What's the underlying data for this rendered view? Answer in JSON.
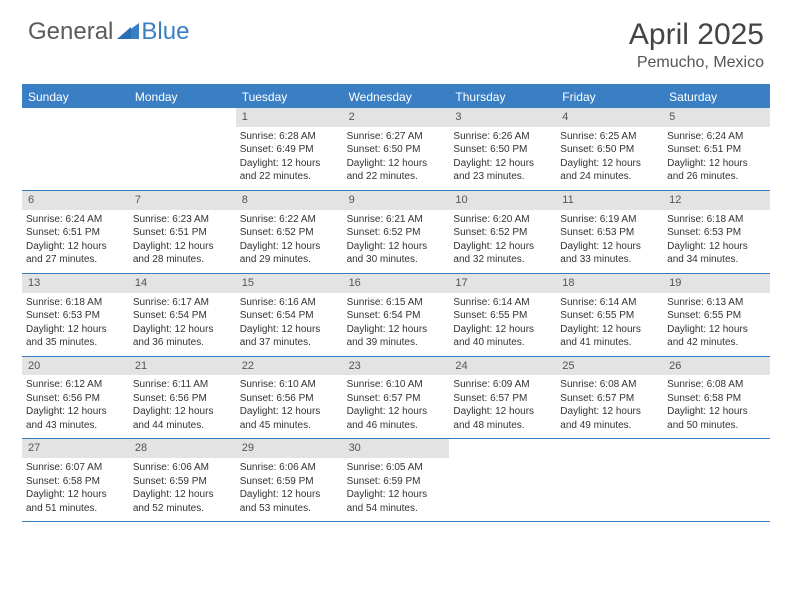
{
  "logo": {
    "text1": "General",
    "text2": "Blue"
  },
  "title": "April 2025",
  "location": "Pemucho, Mexico",
  "colors": {
    "accent": "#3a7fc4",
    "dayHeaderBg": "#e3e3e3",
    "text": "#333333",
    "logoGray": "#5a5a5a"
  },
  "weekdays": [
    "Sunday",
    "Monday",
    "Tuesday",
    "Wednesday",
    "Thursday",
    "Friday",
    "Saturday"
  ],
  "weeks": [
    [
      {
        "n": "",
        "empty": true
      },
      {
        "n": "",
        "empty": true
      },
      {
        "n": "1",
        "sr": "6:28 AM",
        "ss": "6:49 PM",
        "dl": "12 hours and 22 minutes."
      },
      {
        "n": "2",
        "sr": "6:27 AM",
        "ss": "6:50 PM",
        "dl": "12 hours and 22 minutes."
      },
      {
        "n": "3",
        "sr": "6:26 AM",
        "ss": "6:50 PM",
        "dl": "12 hours and 23 minutes."
      },
      {
        "n": "4",
        "sr": "6:25 AM",
        "ss": "6:50 PM",
        "dl": "12 hours and 24 minutes."
      },
      {
        "n": "5",
        "sr": "6:24 AM",
        "ss": "6:51 PM",
        "dl": "12 hours and 26 minutes."
      }
    ],
    [
      {
        "n": "6",
        "sr": "6:24 AM",
        "ss": "6:51 PM",
        "dl": "12 hours and 27 minutes."
      },
      {
        "n": "7",
        "sr": "6:23 AM",
        "ss": "6:51 PM",
        "dl": "12 hours and 28 minutes."
      },
      {
        "n": "8",
        "sr": "6:22 AM",
        "ss": "6:52 PM",
        "dl": "12 hours and 29 minutes."
      },
      {
        "n": "9",
        "sr": "6:21 AM",
        "ss": "6:52 PM",
        "dl": "12 hours and 30 minutes."
      },
      {
        "n": "10",
        "sr": "6:20 AM",
        "ss": "6:52 PM",
        "dl": "12 hours and 32 minutes."
      },
      {
        "n": "11",
        "sr": "6:19 AM",
        "ss": "6:53 PM",
        "dl": "12 hours and 33 minutes."
      },
      {
        "n": "12",
        "sr": "6:18 AM",
        "ss": "6:53 PM",
        "dl": "12 hours and 34 minutes."
      }
    ],
    [
      {
        "n": "13",
        "sr": "6:18 AM",
        "ss": "6:53 PM",
        "dl": "12 hours and 35 minutes."
      },
      {
        "n": "14",
        "sr": "6:17 AM",
        "ss": "6:54 PM",
        "dl": "12 hours and 36 minutes."
      },
      {
        "n": "15",
        "sr": "6:16 AM",
        "ss": "6:54 PM",
        "dl": "12 hours and 37 minutes."
      },
      {
        "n": "16",
        "sr": "6:15 AM",
        "ss": "6:54 PM",
        "dl": "12 hours and 39 minutes."
      },
      {
        "n": "17",
        "sr": "6:14 AM",
        "ss": "6:55 PM",
        "dl": "12 hours and 40 minutes."
      },
      {
        "n": "18",
        "sr": "6:14 AM",
        "ss": "6:55 PM",
        "dl": "12 hours and 41 minutes."
      },
      {
        "n": "19",
        "sr": "6:13 AM",
        "ss": "6:55 PM",
        "dl": "12 hours and 42 minutes."
      }
    ],
    [
      {
        "n": "20",
        "sr": "6:12 AM",
        "ss": "6:56 PM",
        "dl": "12 hours and 43 minutes."
      },
      {
        "n": "21",
        "sr": "6:11 AM",
        "ss": "6:56 PM",
        "dl": "12 hours and 44 minutes."
      },
      {
        "n": "22",
        "sr": "6:10 AM",
        "ss": "6:56 PM",
        "dl": "12 hours and 45 minutes."
      },
      {
        "n": "23",
        "sr": "6:10 AM",
        "ss": "6:57 PM",
        "dl": "12 hours and 46 minutes."
      },
      {
        "n": "24",
        "sr": "6:09 AM",
        "ss": "6:57 PM",
        "dl": "12 hours and 48 minutes."
      },
      {
        "n": "25",
        "sr": "6:08 AM",
        "ss": "6:57 PM",
        "dl": "12 hours and 49 minutes."
      },
      {
        "n": "26",
        "sr": "6:08 AM",
        "ss": "6:58 PM",
        "dl": "12 hours and 50 minutes."
      }
    ],
    [
      {
        "n": "27",
        "sr": "6:07 AM",
        "ss": "6:58 PM",
        "dl": "12 hours and 51 minutes."
      },
      {
        "n": "28",
        "sr": "6:06 AM",
        "ss": "6:59 PM",
        "dl": "12 hours and 52 minutes."
      },
      {
        "n": "29",
        "sr": "6:06 AM",
        "ss": "6:59 PM",
        "dl": "12 hours and 53 minutes."
      },
      {
        "n": "30",
        "sr": "6:05 AM",
        "ss": "6:59 PM",
        "dl": "12 hours and 54 minutes."
      },
      {
        "n": "",
        "empty": true
      },
      {
        "n": "",
        "empty": true
      },
      {
        "n": "",
        "empty": true
      }
    ]
  ],
  "labels": {
    "sunrise": "Sunrise:",
    "sunset": "Sunset:",
    "daylight": "Daylight:"
  }
}
